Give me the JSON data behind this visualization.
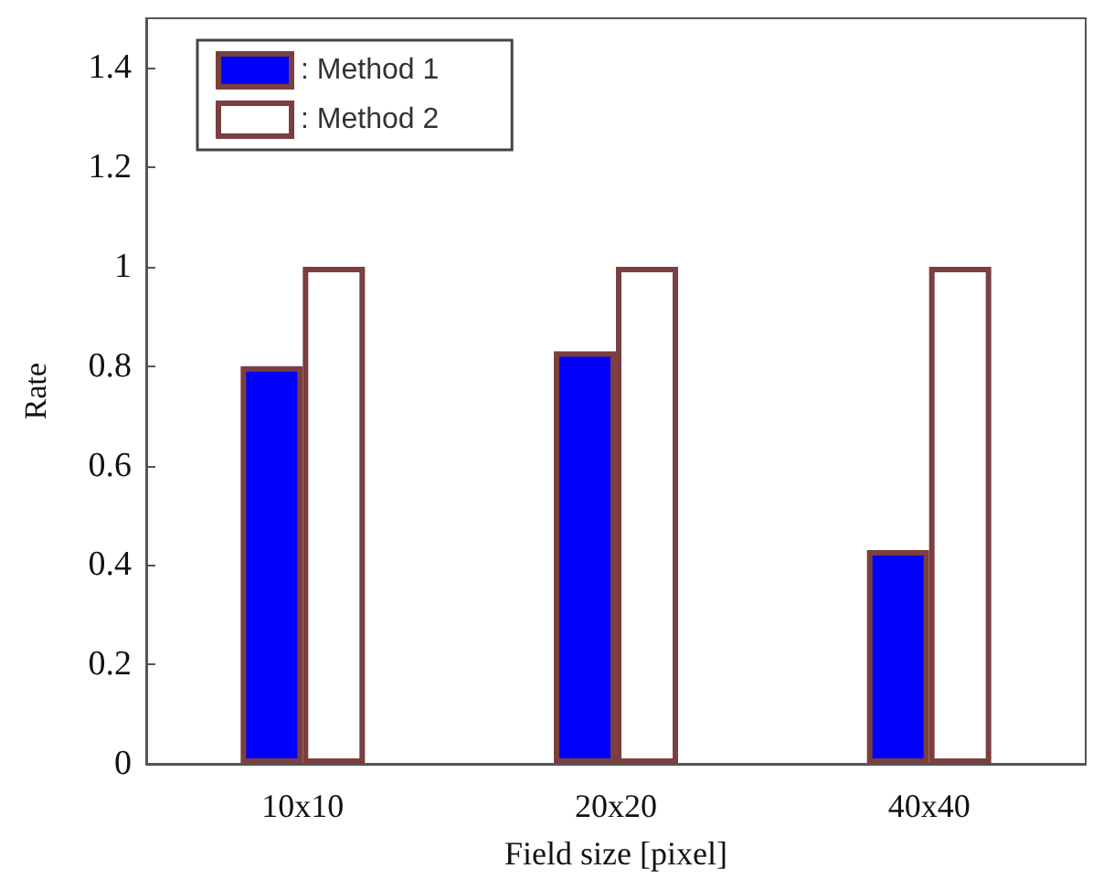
{
  "chart_data": {
    "type": "bar",
    "xlabel": "Field size [pixel]",
    "ylabel": "Rate",
    "categories": [
      "10x10",
      "20x20",
      "40x40"
    ],
    "series": [
      {
        "name": ": Method 1",
        "color": "#0000ff",
        "values": [
          0.8,
          0.83,
          0.43
        ]
      },
      {
        "name": ": Method 2",
        "color": "#ffffff",
        "values": [
          1,
          1,
          1
        ]
      }
    ],
    "ylim": [
      0,
      1.5
    ],
    "yticks": [
      0,
      0.2,
      0.4,
      0.6,
      0.8,
      1,
      1.2,
      1.4
    ],
    "legend": "top left",
    "grid": false
  }
}
